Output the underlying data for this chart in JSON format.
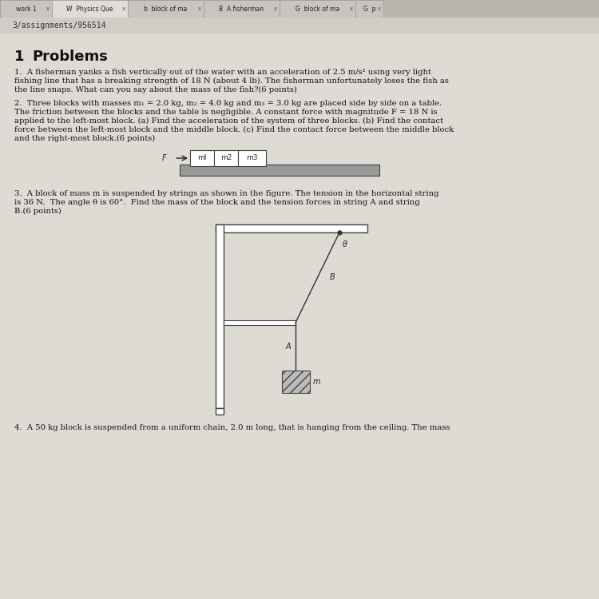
{
  "fig_bg": "#d4cfc8",
  "page_bg": "#e8e4de",
  "text_color": "#222222",
  "wall_color": "#444444",
  "string_color": "#333333",
  "block_hatch_color": "#555555",
  "tab_bg": "#c8c4be",
  "tab_active_bg": "#e8e4de",
  "browser_bar_bg": "#d0ccc6",
  "block_face": "#aaaaaa",
  "tab_labels": [
    "work 1  x",
    "Physics Que  x",
    "block of ma  x",
    "A fisherman  x",
    "block of ma  x",
    "p"
  ],
  "url_text": "3/assignments/956514",
  "heading": "1   Problems",
  "p1": "1.  A fisherman yanks a fish vertically out of the water with an acceleration of 2.5 m/s² using very light\nfishing line that has a breaking strength of 18 N (about 4 lb). The fisherman unfortunately loses the fish as\nthe line snaps. What can you say about the mass of the fish?(6 points)",
  "p2_line1": "2.  Three blocks with masses m₁ = 2.0 kg, m₂ = 4.0 kg and m₃ = 3.0 kg are placed side by side on a table.",
  "p2_line2": "The friction between the blocks and the table is negligible. A constant force with magnitude F = 18 N is",
  "p2_line3": "applied to the left-most block. (a) Find the acceleration of the system of three blocks. (b) Find the contact",
  "p2_line4": "force between the left-most block and the middle block. (c) Find the contact force between the middle block",
  "p2_line5": "and the right-most block.(6 points)",
  "p3_line1": "3.  A block of mass m is suspended by strings as shown in the figure. The tension in the horizontal string",
  "p3_line2": "is 36 N.  The angle θ is 60°.  Find the mass of the block and the tension forces in string A and string",
  "p3_line3": "B.(6 points)",
  "p4_line1": "4.  A 50 kg block is suspended from a uniform chain, 2.0 m long, that is hanging from the ceiling. The mass"
}
